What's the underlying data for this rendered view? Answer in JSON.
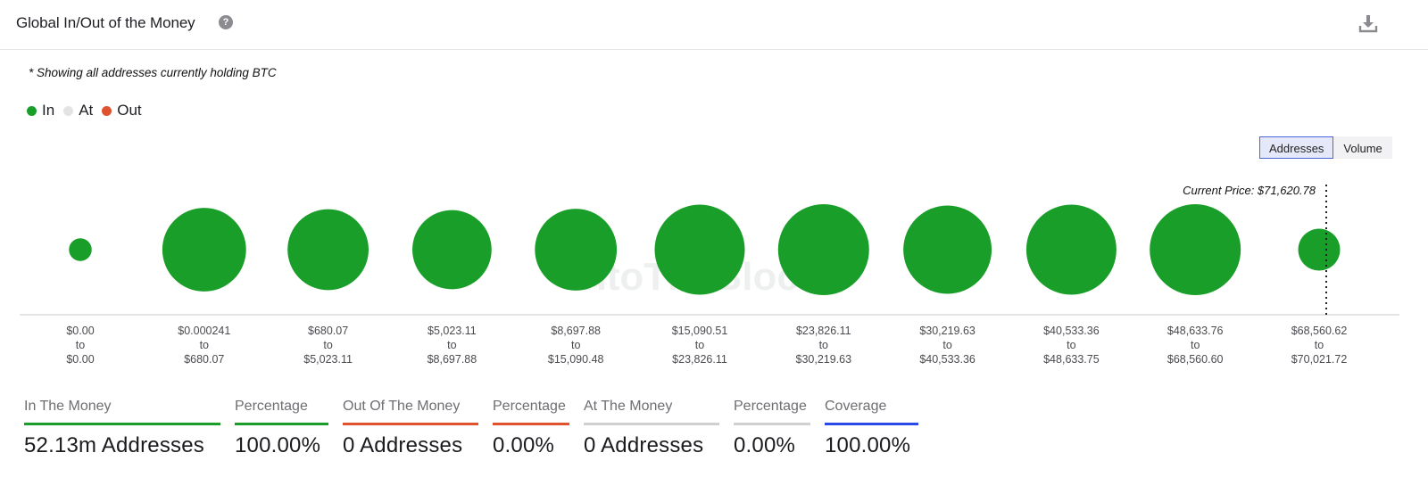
{
  "header": {
    "title": "Global In/Out of the Money",
    "help_glyph": "?",
    "icons": {
      "help": "question-circle-icon",
      "download": "download-icon"
    }
  },
  "note": "* Showing all addresses currently holding BTC",
  "legend": [
    {
      "label": "In",
      "color": "#1a9e2a"
    },
    {
      "label": "At",
      "color": "#e3e3e3"
    },
    {
      "label": "Out",
      "color": "#e0512e"
    }
  ],
  "toggle": {
    "options": [
      "Addresses",
      "Volume"
    ],
    "selected": "Addresses"
  },
  "chart_data": {
    "type": "bubble",
    "series_color": "#1a9e2a",
    "current_price_label": "Current Price: $71,620.78",
    "watermark": "IntoTheBlock",
    "bins": [
      {
        "from": "$0.00",
        "to": "$0.00",
        "relative_size": 0.25
      },
      {
        "from": "$0.000241",
        "to": "$680.07",
        "relative_size": 0.92
      },
      {
        "from": "$680.07",
        "to": "$5,023.11",
        "relative_size": 0.89
      },
      {
        "from": "$5,023.11",
        "to": "$8,697.88",
        "relative_size": 0.87
      },
      {
        "from": "$8,697.88",
        "to": "$15,090.48",
        "relative_size": 0.9
      },
      {
        "from": "$15,090.51",
        "to": "$23,826.11",
        "relative_size": 0.99
      },
      {
        "from": "$23,826.11",
        "to": "$30,219.63",
        "relative_size": 1.0
      },
      {
        "from": "$30,219.63",
        "to": "$40,533.36",
        "relative_size": 0.97
      },
      {
        "from": "$40,533.36",
        "to": "$48,633.75",
        "relative_size": 0.99
      },
      {
        "from": "$48,633.76",
        "to": "$68,560.60",
        "relative_size": 1.0
      },
      {
        "from": "$68,560.62",
        "to": "$70,021.72",
        "relative_size": 0.46
      }
    ],
    "range_connector": "to"
  },
  "stats": [
    {
      "label": "In The Money",
      "value": "52.13m Addresses",
      "color": "#1a9e2a"
    },
    {
      "label": "Percentage",
      "value": "100.00%",
      "color": "#1a9e2a"
    },
    {
      "label": "Out Of The Money",
      "value": "0 Addresses",
      "color": "#e0512e"
    },
    {
      "label": "Percentage",
      "value": "0.00%",
      "color": "#e0512e"
    },
    {
      "label": "At The Money",
      "value": "0 Addresses",
      "color": "#d0d0d0"
    },
    {
      "label": "Percentage",
      "value": "0.00%",
      "color": "#d0d0d0"
    },
    {
      "label": "Coverage",
      "value": "100.00%",
      "color": "#2b49e6"
    }
  ]
}
